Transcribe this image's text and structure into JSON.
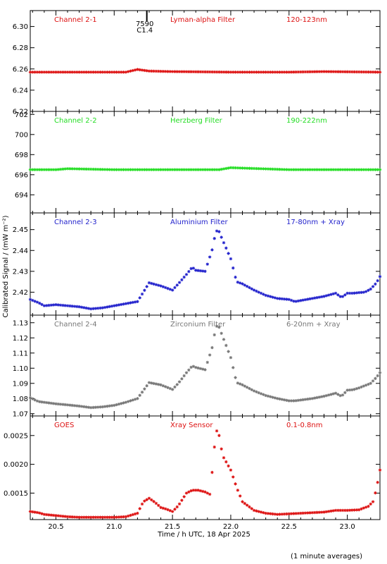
{
  "y_axis_label": "Calibrated Signal / (mW m⁻²)",
  "x_axis_label": "Time / h UTC, 18 Apr 2025",
  "footnote": "(1 minute averages)",
  "event_marker": {
    "x": 21.28,
    "labels": [
      "7590",
      "C1.4"
    ]
  },
  "chart_data": [
    {
      "type": "scatter",
      "channel": "Channel 2-1",
      "filter": "Lyman-alpha Filter",
      "band": "120-123nm",
      "color": "#dd1111",
      "xlim": [
        20.28,
        23.28
      ],
      "ylim": [
        6.22,
        6.315
      ],
      "yticks": [
        6.22,
        6.24,
        6.26,
        6.28,
        6.3
      ],
      "ytick_labels": [
        "6.22",
        "6.24",
        "6.26",
        "6.28",
        "6.30"
      ],
      "x": [
        20.3,
        20.8,
        21.1,
        21.2,
        21.3,
        21.5,
        22.0,
        22.5,
        22.8,
        23.28
      ],
      "y": [
        6.257,
        6.257,
        6.257,
        6.2595,
        6.258,
        6.2575,
        6.257,
        6.257,
        6.2575,
        6.257
      ]
    },
    {
      "type": "scatter",
      "channel": "Channel 2-2",
      "filter": "Herzberg Filter",
      "band": "190-222nm",
      "color": "#22dd22",
      "xlim": [
        20.28,
        23.28
      ],
      "ylim": [
        692.2,
        702.3
      ],
      "yticks": [
        694,
        696,
        698,
        700,
        702
      ],
      "ytick_labels": [
        "694",
        "696",
        "698",
        "700",
        "702"
      ],
      "x": [
        20.3,
        20.5,
        20.6,
        21.0,
        21.5,
        21.9,
        22.0,
        22.5,
        23.28
      ],
      "y": [
        696.5,
        696.5,
        696.6,
        696.5,
        696.5,
        696.5,
        696.7,
        696.5,
        696.5
      ]
    },
    {
      "type": "scatter",
      "channel": "Channel 2-3",
      "filter": "Aluminium Filter",
      "band": "17-80nm + Xray",
      "color": "#2222cc",
      "xlim": [
        20.28,
        23.28
      ],
      "ylim": [
        2.409,
        2.458
      ],
      "yticks": [
        2.42,
        2.43,
        2.44,
        2.45
      ],
      "ytick_labels": [
        "2.42",
        "2.43",
        "2.44",
        "2.45"
      ],
      "x": [
        20.28,
        20.35,
        20.4,
        20.5,
        20.6,
        20.7,
        20.8,
        20.9,
        21.0,
        21.1,
        21.2,
        21.3,
        21.4,
        21.5,
        21.55,
        21.62,
        21.67,
        21.7,
        21.78,
        21.85,
        21.87,
        21.9,
        21.93,
        22.0,
        22.05,
        22.1,
        22.2,
        22.3,
        22.4,
        22.5,
        22.55,
        22.6,
        22.7,
        22.8,
        22.9,
        22.95,
        23.0,
        23.05,
        23.1,
        23.15,
        23.2,
        23.25,
        23.28
      ],
      "y": [
        2.4165,
        2.415,
        2.4135,
        2.414,
        2.4135,
        2.413,
        2.412,
        2.4125,
        2.4135,
        2.4145,
        2.4155,
        2.4245,
        2.423,
        2.421,
        2.424,
        2.4285,
        2.432,
        2.4305,
        2.43,
        2.442,
        2.4495,
        2.449,
        2.445,
        2.436,
        2.425,
        2.424,
        2.421,
        2.4185,
        2.417,
        2.4165,
        2.4155,
        2.416,
        2.417,
        2.418,
        2.4195,
        2.4175,
        2.4195,
        2.4195,
        2.4198,
        2.42,
        2.4215,
        2.4245,
        2.4275
      ]
    },
    {
      "type": "scatter",
      "channel": "Channel 2-4",
      "filter": "Zirconium Filter",
      "band": "6-20nm + Xray",
      "color": "#777777",
      "xlim": [
        20.28,
        23.28
      ],
      "ylim": [
        1.0685,
        1.135
      ],
      "yticks": [
        1.07,
        1.08,
        1.09,
        1.1,
        1.11,
        1.12,
        1.13
      ],
      "ytick_labels": [
        "1.07",
        "1.08",
        "1.09",
        "1.10",
        "1.11",
        "1.12",
        "1.13"
      ],
      "x": [
        20.28,
        20.35,
        20.4,
        20.5,
        20.6,
        20.7,
        20.8,
        20.9,
        21.0,
        21.1,
        21.2,
        21.3,
        21.4,
        21.5,
        21.55,
        21.62,
        21.67,
        21.7,
        21.78,
        21.85,
        21.87,
        21.9,
        21.93,
        22.0,
        22.05,
        22.1,
        22.2,
        22.3,
        22.4,
        22.5,
        22.55,
        22.6,
        22.7,
        22.8,
        22.9,
        22.95,
        23.0,
        23.05,
        23.1,
        23.15,
        23.2,
        23.25,
        23.28
      ],
      "y": [
        1.0805,
        1.078,
        1.0775,
        1.0765,
        1.0758,
        1.075,
        1.074,
        1.0745,
        1.0755,
        1.0775,
        1.08,
        1.0905,
        1.089,
        1.086,
        1.09,
        1.097,
        1.1015,
        1.1005,
        1.099,
        1.116,
        1.128,
        1.127,
        1.121,
        1.107,
        1.0905,
        1.089,
        1.085,
        1.082,
        1.08,
        1.0785,
        1.0785,
        1.079,
        1.08,
        1.0815,
        1.0835,
        1.0815,
        1.0855,
        1.0858,
        1.087,
        1.0885,
        1.09,
        1.094,
        1.097
      ]
    },
    {
      "type": "scatter",
      "channel": "GOES",
      "filter": "Xray Sensor",
      "band": "0.1-0.8nm",
      "color": "#dd1111",
      "xlim": [
        20.28,
        23.28
      ],
      "ylim": [
        0.00104,
        0.00284
      ],
      "yticks": [
        0.0015,
        0.002,
        0.0025
      ],
      "ytick_labels": [
        "0.0015",
        "0.0020",
        "0.0025"
      ],
      "x": [
        20.28,
        20.35,
        20.4,
        20.5,
        20.6,
        20.7,
        20.8,
        20.9,
        21.0,
        21.1,
        21.2,
        21.25,
        21.3,
        21.35,
        21.4,
        21.45,
        21.5,
        21.55,
        21.62,
        21.67,
        21.72,
        21.78,
        21.82,
        21.85,
        21.87,
        21.88,
        21.9,
        21.93,
        22.0,
        22.05,
        22.1,
        22.2,
        22.3,
        22.4,
        22.5,
        22.6,
        22.7,
        22.8,
        22.9,
        23.0,
        23.1,
        23.18,
        23.22,
        23.25,
        23.28
      ],
      "y": [
        0.00118,
        0.00116,
        0.00113,
        0.00111,
        0.00109,
        0.00108,
        0.00108,
        0.00108,
        0.00108,
        0.00109,
        0.00115,
        0.00135,
        0.00141,
        0.00134,
        0.00125,
        0.00122,
        0.00118,
        0.00128,
        0.0015,
        0.00155,
        0.00155,
        0.00152,
        0.00148,
        0.00205,
        0.00255,
        0.00258,
        0.0025,
        0.00215,
        0.0019,
        0.0016,
        0.00135,
        0.0012,
        0.00115,
        0.00113,
        0.00114,
        0.00115,
        0.00116,
        0.00117,
        0.0012,
        0.0012,
        0.00121,
        0.00127,
        0.00135,
        0.00158,
        0.0019
      ]
    }
  ],
  "x_axis": {
    "xlim": [
      20.28,
      23.28
    ],
    "ticks": [
      20.5,
      21.0,
      21.5,
      22.0,
      22.5,
      23.0
    ],
    "tick_labels": [
      "20.5",
      "21.0",
      "21.5",
      "22.0",
      "22.5",
      "23.0"
    ]
  }
}
